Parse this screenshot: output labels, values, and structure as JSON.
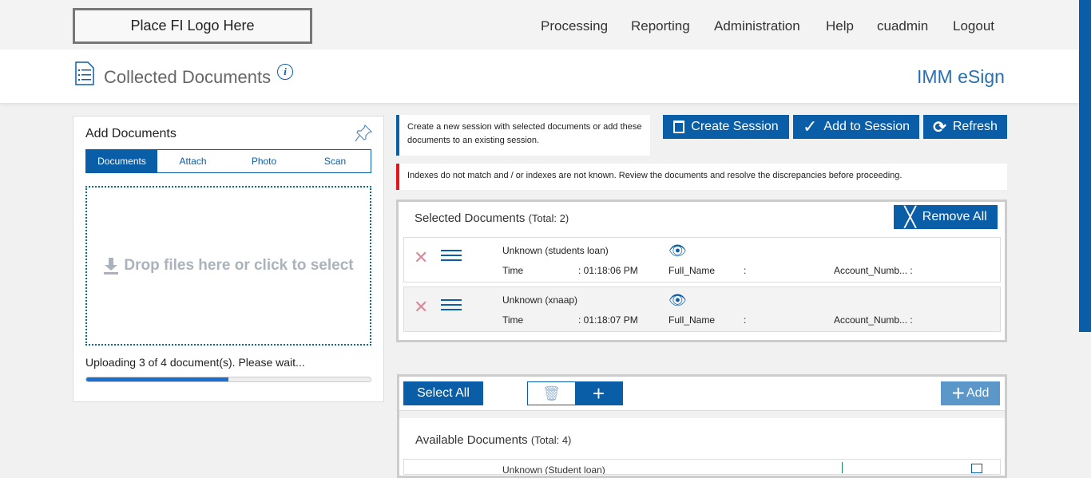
{
  "header": {
    "logo": "Place FI Logo Here",
    "nav": [
      "Processing",
      "Reporting",
      "Administration",
      "Help",
      "cuadmin",
      "Logout"
    ]
  },
  "title": {
    "page_title": "Collected Documents",
    "brand": "IMM eSign"
  },
  "add_documents": {
    "title": "Add Documents",
    "tabs": [
      "Documents",
      "Attach",
      "Photo",
      "Scan"
    ],
    "active_tab": "Documents",
    "dropzone": "Drop files here or click to select",
    "upload_status": "Uploading 3 of 4 document(s). Please wait...",
    "upload_progress": 0.5
  },
  "session": {
    "info": "Create a new session with selected documents or add these documents to an existing session.",
    "create": "Create Session",
    "add": "Add to Session",
    "refresh": "Refresh"
  },
  "warning": "Indexes do not match and / or indexes are not known. Review the documents and resolve the discrepancies before proceeding.",
  "selected": {
    "title": "Selected Documents",
    "total": "(Total: 2)",
    "remove_all": "Remove All",
    "rows": [
      {
        "name": "Unknown (students loan)",
        "time_label": "Time",
        "time": ": 01:18:06 PM",
        "f1": "Full_Name",
        "f1v": ":",
        "f2": "Account_Numb... :"
      },
      {
        "name": "Unknown (xnaap)",
        "time_label": "Time",
        "time": ": 01:18:07 PM",
        "f1": "Full_Name",
        "f1v": ":",
        "f2": "Account_Numb... :"
      }
    ]
  },
  "available": {
    "select_all": "Select All",
    "add": "Add",
    "title": "Available Documents",
    "total": "(Total: 4)",
    "first_row": "Unknown (Student loan)"
  },
  "colors": {
    "primary": "#0a5ea8",
    "warning": "#e8141b",
    "remove_x": "#d98a9a"
  }
}
